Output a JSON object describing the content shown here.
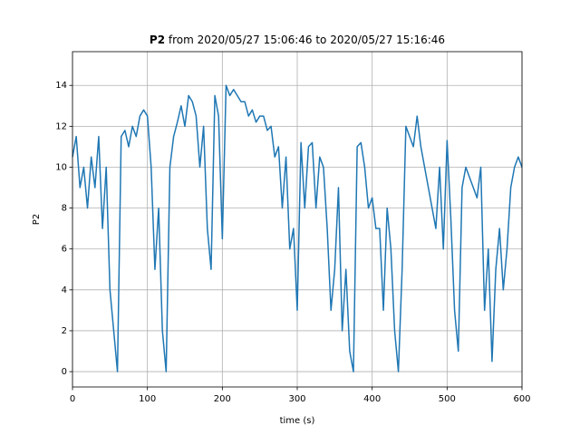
{
  "chart_data": {
    "type": "line",
    "title_prefix": "P2",
    "title": "from 2020/05/27 15:06:46 to 2020/05/27 15:16:46",
    "x_label": "time (s)",
    "y_label": "P2",
    "xlim": [
      0,
      600
    ],
    "ylim": [
      -0.75,
      15.65
    ],
    "xticks": [
      0,
      100,
      200,
      300,
      400,
      500,
      600
    ],
    "yticks": [
      0,
      2,
      4,
      6,
      8,
      10,
      12,
      14
    ],
    "grid": true,
    "x": [
      0,
      5,
      10,
      15,
      20,
      25,
      30,
      35,
      40,
      45,
      50,
      55,
      60,
      65,
      70,
      75,
      80,
      85,
      90,
      95,
      100,
      105,
      110,
      115,
      120,
      125,
      130,
      135,
      140,
      145,
      150,
      155,
      160,
      165,
      170,
      175,
      180,
      185,
      190,
      195,
      200,
      205,
      210,
      215,
      220,
      225,
      230,
      235,
      240,
      245,
      250,
      255,
      260,
      265,
      270,
      275,
      280,
      285,
      290,
      295,
      300,
      305,
      310,
      315,
      320,
      325,
      330,
      335,
      340,
      345,
      350,
      355,
      360,
      365,
      370,
      375,
      380,
      385,
      390,
      395,
      400,
      405,
      410,
      415,
      420,
      425,
      430,
      435,
      440,
      445,
      450,
      455,
      460,
      465,
      470,
      475,
      480,
      485,
      490,
      495,
      500,
      505,
      510,
      515,
      520,
      525,
      530,
      535,
      540,
      545,
      550,
      555,
      560,
      565,
      570,
      575,
      580,
      585,
      590,
      595,
      600
    ],
    "series": [
      {
        "name": "P2",
        "color": "#1f77b4",
        "values": [
          10.5,
          11.5,
          9,
          10,
          8,
          10.5,
          9,
          11.5,
          7,
          10,
          4,
          2,
          0,
          11.5,
          11.8,
          11,
          12,
          11.5,
          12.5,
          12.8,
          12.5,
          10,
          5,
          8,
          2,
          0,
          10,
          11.5,
          12.2,
          13,
          12,
          13.5,
          13.2,
          12.5,
          10,
          12,
          7,
          5,
          13.5,
          12.5,
          6.5,
          14,
          13.5,
          13.8,
          13.5,
          13.2,
          13.2,
          12.5,
          12.8,
          12.2,
          12.5,
          12.5,
          11.8,
          12,
          10.5,
          11,
          8,
          10.5,
          6,
          7,
          3,
          11.2,
          8,
          11,
          11.2,
          8,
          10.5,
          10,
          7,
          3,
          5,
          9,
          2,
          5,
          1,
          0,
          11,
          11.2,
          10,
          8,
          8.5,
          7,
          7,
          3,
          8,
          6,
          2,
          0,
          5,
          12,
          11.5,
          11,
          12.5,
          11,
          10,
          9,
          8,
          7,
          10,
          6,
          11.3,
          7.5,
          3,
          1,
          9,
          10,
          9.5,
          9,
          8.5,
          10,
          3,
          6,
          0.5,
          5,
          7,
          4,
          6,
          9,
          10,
          10.5,
          10
        ]
      }
    ]
  }
}
